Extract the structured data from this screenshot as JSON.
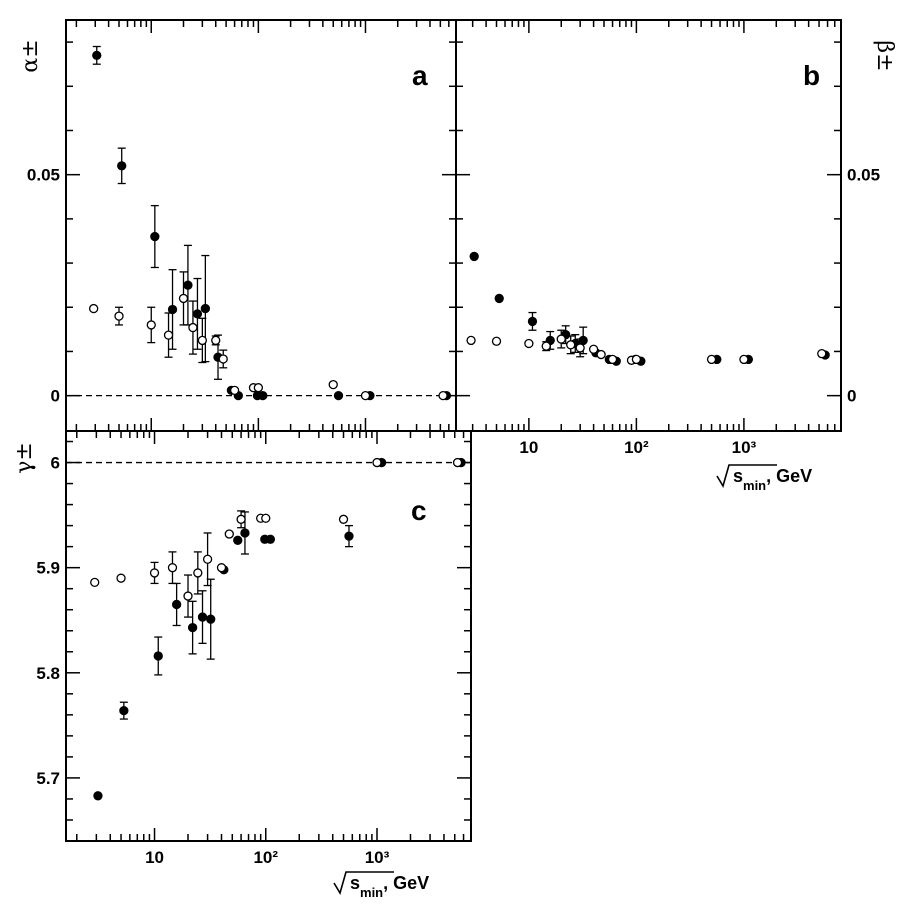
{
  "chart_data": [
    {
      "panel": "a",
      "type": "scatter",
      "ylabel": "α±",
      "xscale": "log",
      "xlim": [
        1.6,
        7000
      ],
      "ylim": [
        -0.008,
        0.085
      ],
      "yticks": [
        0,
        0.05
      ],
      "ytick_labels": [
        "0",
        "0.05"
      ],
      "xticks": [
        10,
        100,
        1000
      ],
      "xtick_labels": [],
      "reference_line": 0,
      "series": [
        {
          "marker": "filled",
          "points": [
            {
              "x": 3.1,
              "y": 0.077,
              "err": 0.002
            },
            {
              "x": 5.3,
              "y": 0.052,
              "err": 0.004
            },
            {
              "x": 10.8,
              "y": 0.036,
              "err": 0.007
            },
            {
              "x": 15.8,
              "y": 0.0195,
              "err": 0.009
            },
            {
              "x": 22,
              "y": 0.025,
              "err": 0.009
            },
            {
              "x": 27,
              "y": 0.0185,
              "err": 0.008
            },
            {
              "x": 32,
              "y": 0.0197,
              "err": 0.012
            },
            {
              "x": 42,
              "y": 0.0087,
              "err": 0.005
            },
            {
              "x": 56,
              "y": 0.0012,
              "err": 0
            },
            {
              "x": 65,
              "y": 0,
              "err": 0
            },
            {
              "x": 98,
              "y": 0,
              "err": 0
            },
            {
              "x": 110,
              "y": 0,
              "err": 0
            },
            {
              "x": 560,
              "y": 0,
              "err": 0
            },
            {
              "x": 1100,
              "y": 0,
              "err": 0
            },
            {
              "x": 5700,
              "y": 0,
              "err": 0
            }
          ]
        },
        {
          "marker": "open",
          "points": [
            {
              "x": 2.9,
              "y": 0.0197,
              "err": 0
            },
            {
              "x": 5.0,
              "y": 0.018,
              "err": 0.002
            },
            {
              "x": 10,
              "y": 0.016,
              "err": 0.004
            },
            {
              "x": 14.5,
              "y": 0.0137,
              "err": 0.005
            },
            {
              "x": 20,
              "y": 0.022,
              "err": 0.006
            },
            {
              "x": 24.5,
              "y": 0.0154,
              "err": 0.006
            },
            {
              "x": 30,
              "y": 0.0125,
              "err": 0.005
            },
            {
              "x": 40,
              "y": 0.0125,
              "err": 0.001
            },
            {
              "x": 47,
              "y": 0.0083,
              "err": 0.002
            },
            {
              "x": 60,
              "y": 0.0012,
              "err": 0
            },
            {
              "x": 90,
              "y": 0.0018,
              "err": 0
            },
            {
              "x": 100,
              "y": 0.0018,
              "err": 0
            },
            {
              "x": 500,
              "y": 0.0025,
              "err": 0
            },
            {
              "x": 1000,
              "y": 0,
              "err": 0
            },
            {
              "x": 5300,
              "y": 0,
              "err": 0
            }
          ]
        }
      ]
    },
    {
      "panel": "b",
      "type": "scatter",
      "ylabel": "β±",
      "xlabel": "√s_min, GeV",
      "xscale": "log",
      "xlim": [
        2.1,
        8000
      ],
      "ylim": [
        -0.008,
        0.085
      ],
      "yticks": [
        0,
        0.05
      ],
      "ytick_labels": [
        "0",
        "0.05"
      ],
      "xticks": [
        10,
        100,
        1000
      ],
      "xtick_labels": [
        "10",
        "10²",
        "10³"
      ],
      "series": [
        {
          "marker": "filled",
          "points": [
            {
              "x": 3.1,
              "y": 0.0315,
              "err": 0
            },
            {
              "x": 5.3,
              "y": 0.022,
              "err": 0
            },
            {
              "x": 10.8,
              "y": 0.0168,
              "err": 0.002
            },
            {
              "x": 15.8,
              "y": 0.0125,
              "err": 0.002
            },
            {
              "x": 22,
              "y": 0.0138,
              "err": 0.002
            },
            {
              "x": 27,
              "y": 0.0118,
              "err": 0.002
            },
            {
              "x": 32,
              "y": 0.0125,
              "err": 0.003
            },
            {
              "x": 42,
              "y": 0.0097,
              "err": 0
            },
            {
              "x": 56,
              "y": 0.0082,
              "err": 0
            },
            {
              "x": 65,
              "y": 0.0078,
              "err": 0
            },
            {
              "x": 98,
              "y": 0.0082,
              "err": 0
            },
            {
              "x": 110,
              "y": 0.0078,
              "err": 0
            },
            {
              "x": 560,
              "y": 0.0082,
              "err": 0
            },
            {
              "x": 1100,
              "y": 0.0082,
              "err": 0
            },
            {
              "x": 5700,
              "y": 0.0092,
              "err": 0
            }
          ]
        },
        {
          "marker": "open",
          "points": [
            {
              "x": 2.9,
              "y": 0.0125,
              "err": 0
            },
            {
              "x": 5.0,
              "y": 0.0123,
              "err": 0
            },
            {
              "x": 10,
              "y": 0.0118,
              "err": 0
            },
            {
              "x": 14.5,
              "y": 0.0112,
              "err": 0.001
            },
            {
              "x": 20,
              "y": 0.0128,
              "err": 0.002
            },
            {
              "x": 24.5,
              "y": 0.0115,
              "err": 0.002
            },
            {
              "x": 30,
              "y": 0.0108,
              "err": 0.002
            },
            {
              "x": 40,
              "y": 0.0105,
              "err": 0
            },
            {
              "x": 47,
              "y": 0.0093,
              "err": 0
            },
            {
              "x": 60,
              "y": 0.0082,
              "err": 0
            },
            {
              "x": 90,
              "y": 0.008,
              "err": 0
            },
            {
              "x": 100,
              "y": 0.0082,
              "err": 0
            },
            {
              "x": 500,
              "y": 0.0082,
              "err": 0
            },
            {
              "x": 1000,
              "y": 0.0082,
              "err": 0
            },
            {
              "x": 5300,
              "y": 0.0095,
              "err": 0
            }
          ]
        }
      ]
    },
    {
      "panel": "c",
      "type": "scatter",
      "ylabel": "γ±",
      "xlabel": "√s_min, GeV",
      "xscale": "log",
      "xlim": [
        1.6,
        7000
      ],
      "ylim": [
        5.64,
        6.03
      ],
      "yticks": [
        5.7,
        5.8,
        5.9,
        6
      ],
      "ytick_labels": [
        "5.7",
        "5.8",
        "5.9",
        "6"
      ],
      "xticks": [
        10,
        100,
        1000
      ],
      "xtick_labels": [
        "10",
        "10²",
        "10³"
      ],
      "reference_line": 6,
      "series": [
        {
          "marker": "filled",
          "points": [
            {
              "x": 3.1,
              "y": 5.683,
              "err": 0
            },
            {
              "x": 5.3,
              "y": 5.764,
              "err": 0.008
            },
            {
              "x": 10.8,
              "y": 5.816,
              "err": 0.018
            },
            {
              "x": 15.8,
              "y": 5.865,
              "err": 0.02
            },
            {
              "x": 22,
              "y": 5.843,
              "err": 0.025
            },
            {
              "x": 27,
              "y": 5.853,
              "err": 0.025
            },
            {
              "x": 32,
              "y": 5.851,
              "err": 0.038
            },
            {
              "x": 42,
              "y": 5.898,
              "err": 0
            },
            {
              "x": 56,
              "y": 5.926,
              "err": 0
            },
            {
              "x": 65,
              "y": 5.933,
              "err": 0.02
            },
            {
              "x": 98,
              "y": 5.927,
              "err": 0
            },
            {
              "x": 110,
              "y": 5.927,
              "err": 0
            },
            {
              "x": 560,
              "y": 5.93,
              "err": 0.01
            },
            {
              "x": 1100,
              "y": 6.0,
              "err": 0
            },
            {
              "x": 5700,
              "y": 6.0,
              "err": 0
            }
          ]
        },
        {
          "marker": "open",
          "points": [
            {
              "x": 2.9,
              "y": 5.886,
              "err": 0
            },
            {
              "x": 5.0,
              "y": 5.89,
              "err": 0
            },
            {
              "x": 10,
              "y": 5.895,
              "err": 0.01
            },
            {
              "x": 14.5,
              "y": 5.9,
              "err": 0.015
            },
            {
              "x": 20,
              "y": 5.873,
              "err": 0.02
            },
            {
              "x": 24.5,
              "y": 5.895,
              "err": 0.02
            },
            {
              "x": 30,
              "y": 5.908,
              "err": 0.025
            },
            {
              "x": 40,
              "y": 5.9,
              "err": 0
            },
            {
              "x": 47,
              "y": 5.932,
              "err": 0
            },
            {
              "x": 60,
              "y": 5.946,
              "err": 0.008
            },
            {
              "x": 90,
              "y": 5.947,
              "err": 0
            },
            {
              "x": 100,
              "y": 5.947,
              "err": 0
            },
            {
              "x": 500,
              "y": 5.946,
              "err": 0
            },
            {
              "x": 1000,
              "y": 6.0,
              "err": 0
            },
            {
              "x": 5300,
              "y": 6.0,
              "err": 0
            }
          ]
        }
      ]
    }
  ]
}
